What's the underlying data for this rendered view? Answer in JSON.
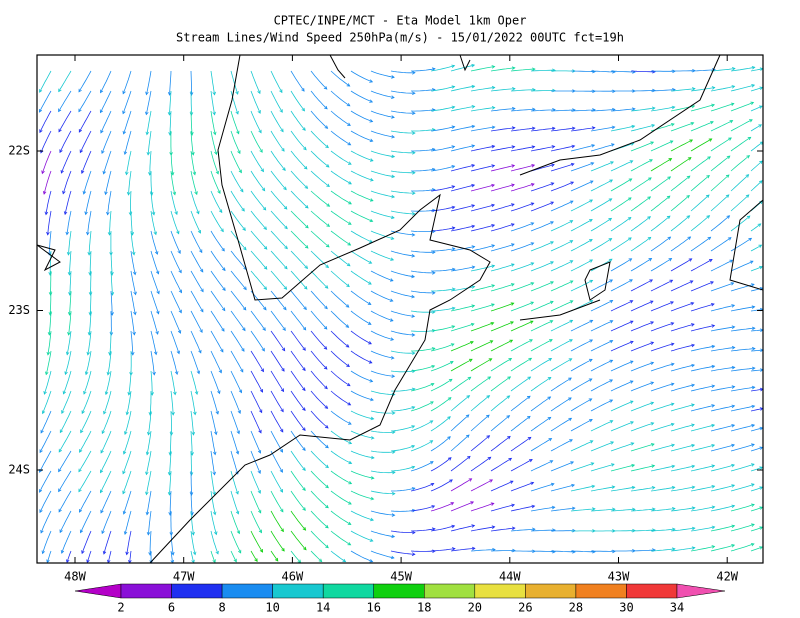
{
  "header": {
    "title": "CPTEC/INPE/MCT -  Eta Model 1km Oper",
    "subtitle": "Stream Lines/Wind Speed 250hPa(m/s) - 15/01/2022 00UTC fct=19h"
  },
  "map": {
    "lat_labels": [
      "22S",
      "23S",
      "24S"
    ],
    "lon_labels": [
      "48W",
      "47W",
      "46W",
      "45W",
      "44W",
      "43W",
      "42W"
    ]
  },
  "colorbar": {
    "labels": [
      "2",
      "6",
      "8",
      "10",
      "14",
      "16",
      "18",
      "20",
      "26",
      "28",
      "30",
      "34"
    ],
    "colors": [
      "#b400c8",
      "#8a10d8",
      "#2030f0",
      "#1a8cf0",
      "#18c8d0",
      "#10d8a0",
      "#10d010",
      "#a0e040",
      "#e8e040",
      "#e8b030",
      "#f08020",
      "#f03838",
      "#f050b0"
    ]
  }
}
